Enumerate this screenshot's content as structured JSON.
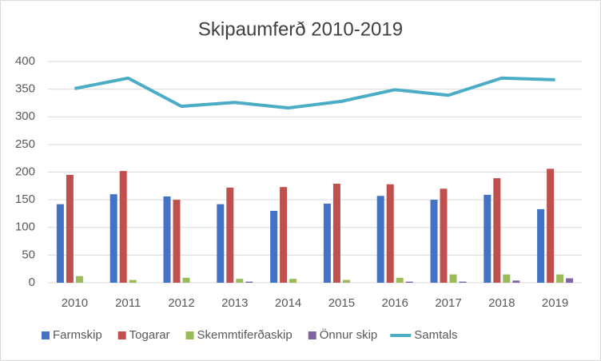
{
  "chart_data": {
    "type": "bar_line",
    "title": "Skipaumferð 2010-2019",
    "categories": [
      "2010",
      "2011",
      "2012",
      "2013",
      "2014",
      "2015",
      "2016",
      "2017",
      "2018",
      "2019"
    ],
    "series": [
      {
        "name": "Farmskip",
        "color": "#4472c4",
        "kind": "bar",
        "values": [
          142,
          160,
          156,
          142,
          130,
          143,
          157,
          150,
          159,
          133
        ]
      },
      {
        "name": "Togarar",
        "color": "#c0504d",
        "kind": "bar",
        "values": [
          195,
          202,
          150,
          172,
          173,
          179,
          178,
          170,
          189,
          206
        ]
      },
      {
        "name": "Skemmtiferðaskip",
        "color": "#9bbb59",
        "kind": "bar",
        "values": [
          12,
          5,
          9,
          7,
          7,
          5,
          9,
          15,
          15,
          15
        ]
      },
      {
        "name": "Önnur skip",
        "color": "#8064a2",
        "kind": "bar",
        "values": [
          0,
          0,
          0,
          2,
          0,
          0,
          2,
          2,
          4,
          8
        ]
      },
      {
        "name": "Samtals",
        "color": "#4bacc6",
        "kind": "line",
        "values": [
          351,
          370,
          319,
          326,
          316,
          328,
          349,
          339,
          370,
          367
        ]
      }
    ],
    "ylim": [
      0,
      400
    ],
    "yticks": [
      0,
      50,
      100,
      150,
      200,
      250,
      300,
      350,
      400
    ],
    "grid": true,
    "legend": "bottom"
  }
}
